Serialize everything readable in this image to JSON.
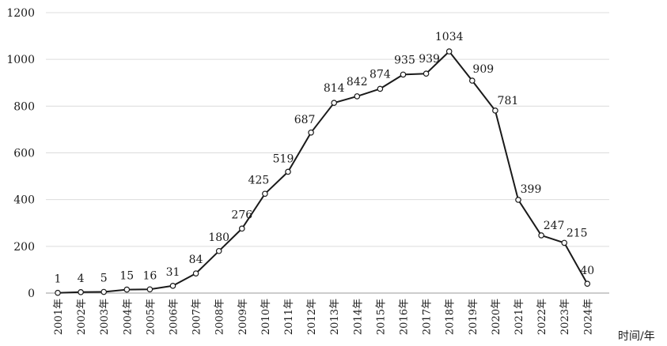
{
  "chart_data": {
    "type": "line",
    "title": "",
    "xlabel": "时间/年",
    "ylabel": "",
    "ylim": [
      0,
      1200
    ],
    "yticks": [
      0,
      200,
      400,
      600,
      800,
      1000,
      1200
    ],
    "grid": true,
    "legend": "none",
    "x": [
      "2001年",
      "2002年",
      "2003年",
      "2004年",
      "2005年",
      "2006年",
      "2007年",
      "2008年",
      "2009年",
      "2010年",
      "2011年",
      "2012年",
      "2013年",
      "2014年",
      "2015年",
      "2016年",
      "2017年",
      "2018年",
      "2019年",
      "2020年",
      "2021年",
      "2022年",
      "2023年",
      "2024年"
    ],
    "series": [
      {
        "values": [
          1,
          4,
          5,
          15,
          16,
          31,
          84,
          180,
          276,
          425,
          519,
          687,
          814,
          842,
          874,
          935,
          939,
          1034,
          909,
          781,
          399,
          247,
          215,
          40
        ],
        "data_labels": [
          "1",
          "4",
          "5",
          "15",
          "16",
          "31",
          "84",
          "180",
          "276",
          "425",
          "519",
          "687",
          "814",
          "842",
          "874",
          "935",
          "939",
          "1034",
          "909",
          "781",
          "399",
          "247",
          "215",
          "40"
        ]
      }
    ],
    "colors": {
      "line": "#1a1a1a",
      "marker_fill": "#ffffff",
      "grid": "#dcdcdc"
    }
  }
}
